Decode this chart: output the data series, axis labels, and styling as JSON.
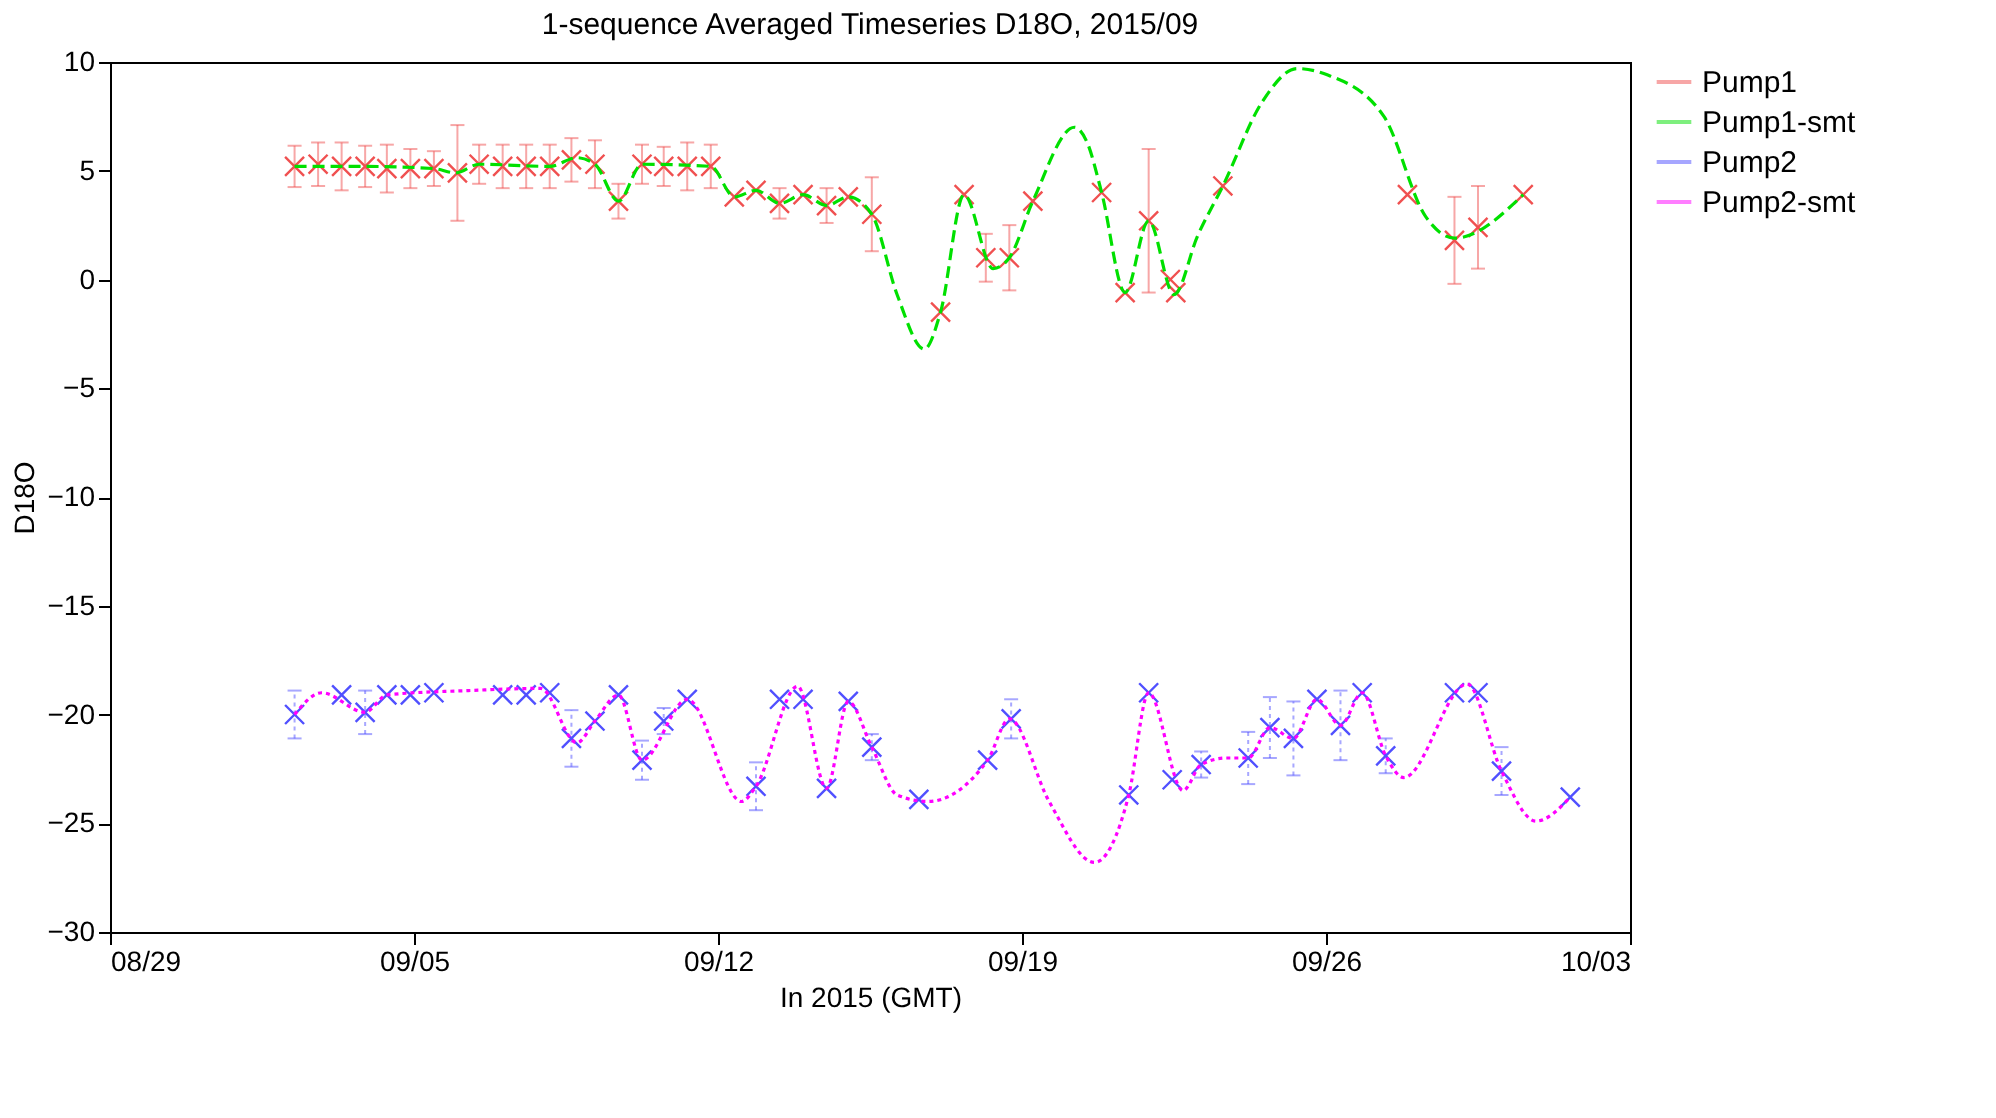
{
  "chart_data": {
    "type": "scatter",
    "title": "1-sequence Averaged Timeseries D18O, 2015/09",
    "xlabel": "In 2015 (GMT)",
    "ylabel": "D18O",
    "xlim": [
      "2015-08-29",
      "2015-10-03"
    ],
    "xticks": [
      {
        "value": "2015-08-29",
        "label": "08/29"
      },
      {
        "value": "2015-09-05",
        "label": "09/05"
      },
      {
        "value": "2015-09-12",
        "label": "09/12"
      },
      {
        "value": "2015-09-19",
        "label": "09/19"
      },
      {
        "value": "2015-09-26",
        "label": "09/26"
      },
      {
        "value": "2015-10-03",
        "label": "10/03"
      }
    ],
    "ylim": [
      -30,
      10
    ],
    "yticks": [
      -30,
      -25,
      -20,
      -15,
      -10,
      -5,
      0,
      5,
      10
    ],
    "grid": false,
    "legend": "top right",
    "marker": "cross",
    "series": [
      {
        "name": "Pump1",
        "color": "#f05050",
        "line_style": "solid",
        "x": [
          "2015-09-02T06:00",
          "2015-09-02T19:00",
          "2015-09-03T08:00",
          "2015-09-03T21:00",
          "2015-09-04T09:00",
          "2015-09-04T22:00",
          "2015-09-05T11:00",
          "2015-09-06T00:00",
          "2015-09-06T12:00",
          "2015-09-07T01:00",
          "2015-09-07T14:00",
          "2015-09-08T03:00",
          "2015-09-08T15:00",
          "2015-09-09T04:00",
          "2015-09-09T17:00",
          "2015-09-10T06:00",
          "2015-09-10T18:00",
          "2015-09-11T07:00",
          "2015-09-11T20:00",
          "2015-09-12T09:00",
          "2015-09-12T21:00",
          "2015-09-13T10:00",
          "2015-09-13T23:00",
          "2015-09-14T12:00",
          "2015-09-15T00:00",
          "2015-09-15T13:00",
          "2015-09-17T03:00",
          "2015-09-17T16:00",
          "2015-09-18T04:00",
          "2015-09-18T17:00",
          "2015-09-19T06:00",
          "2015-09-20T20:00",
          "2015-09-21T09:00",
          "2015-09-21T22:00",
          "2015-09-22T10:00",
          "2015-09-22T13:00",
          "2015-09-23T15:00",
          "2015-09-27T21:00",
          "2015-09-28T23:00",
          "2015-09-29T12:00",
          "2015-09-30T13:00"
        ],
        "values": [
          5.2,
          5.3,
          5.2,
          5.2,
          5.1,
          5.1,
          5.1,
          4.9,
          5.3,
          5.2,
          5.2,
          5.2,
          5.5,
          5.3,
          3.6,
          5.3,
          5.2,
          5.2,
          5.2,
          3.8,
          4.1,
          3.5,
          3.9,
          3.4,
          3.8,
          3.0,
          -1.5,
          3.9,
          1.0,
          1.0,
          3.6,
          4.0,
          -0.6,
          2.7,
          0.0,
          -0.6,
          4.3,
          3.9,
          1.8,
          2.4,
          3.9
        ],
        "errors": [
          0.95,
          1.0,
          1.1,
          0.95,
          1.1,
          0.9,
          0.8,
          2.2,
          0.9,
          1.0,
          1.0,
          1.0,
          1.0,
          1.1,
          0.8,
          0.9,
          0.9,
          1.1,
          1.0,
          null,
          null,
          0.7,
          null,
          0.8,
          null,
          1.7,
          null,
          null,
          1.1,
          1.5,
          null,
          null,
          null,
          3.3,
          null,
          null,
          null,
          null,
          2.0,
          1.9,
          null
        ]
      },
      {
        "name": "Pump1-smt",
        "type": "line",
        "marker": "none",
        "color": "#00e000",
        "line_style": "dashed",
        "x": [
          "2015-09-02T06:00",
          "2015-09-03T21:00",
          "2015-09-05T11:00",
          "2015-09-05T23:00",
          "2015-09-06T12:00",
          "2015-09-08T03:00",
          "2015-09-08T18:00",
          "2015-09-09T04:00",
          "2015-09-09T17:00",
          "2015-09-10T06:00",
          "2015-09-11T20:00",
          "2015-09-12T09:00",
          "2015-09-12T21:00",
          "2015-09-13T10:00",
          "2015-09-13T23:00",
          "2015-09-14T12:00",
          "2015-09-15T00:00",
          "2015-09-15T13:00",
          "2015-09-16T03:00",
          "2015-09-16T18:00",
          "2015-09-17T03:00",
          "2015-09-17T16:00",
          "2015-09-18T08:00",
          "2015-09-18T17:00",
          "2015-09-19T06:00",
          "2015-09-20T05:00",
          "2015-09-20T12:00",
          "2015-09-20T20:00",
          "2015-09-21T09:00",
          "2015-09-21T22:00",
          "2015-09-22T12:00",
          "2015-09-23T01:00",
          "2015-09-23T15:00",
          "2015-09-24T13:00",
          "2015-09-25T08:00",
          "2015-09-26T01:00",
          "2015-09-27T08:00",
          "2015-09-28T07:00",
          "2015-09-28T23:00",
          "2015-09-30T13:00"
        ],
        "values": [
          5.2,
          5.2,
          5.1,
          4.9,
          5.3,
          5.2,
          5.6,
          5.3,
          3.6,
          5.3,
          5.2,
          3.8,
          4.1,
          3.5,
          3.9,
          3.4,
          3.8,
          3.0,
          -0.7,
          -3.2,
          -1.5,
          3.9,
          0.5,
          1.0,
          3.6,
          7.0,
          6.3,
          4.0,
          -0.6,
          2.7,
          -0.7,
          2.0,
          4.3,
          8.2,
          9.7,
          9.4,
          7.5,
          2.9,
          1.9,
          3.9
        ]
      },
      {
        "name": "Pump2",
        "color": "#5050ff",
        "line_style": "dotted",
        "x": [
          "2015-09-02T06:00",
          "2015-09-03T08:00",
          "2015-09-03T21:00",
          "2015-09-04T09:00",
          "2015-09-04T22:00",
          "2015-09-05T11:00",
          "2015-09-07T01:00",
          "2015-09-07T14:00",
          "2015-09-08T03:00",
          "2015-09-08T15:00",
          "2015-09-09T04:00",
          "2015-09-09T17:00",
          "2015-09-10T06:00",
          "2015-09-10T18:00",
          "2015-09-11T07:00",
          "2015-09-12T21:00",
          "2015-09-13T10:00",
          "2015-09-13T23:00",
          "2015-09-14T12:00",
          "2015-09-15T00:00",
          "2015-09-15T13:00",
          "2015-09-16T15:00",
          "2015-09-18T05:00",
          "2015-09-18T18:00",
          "2015-09-21T11:00",
          "2015-09-21T22:00",
          "2015-09-22T11:00",
          "2015-09-23T03:00",
          "2015-09-24T05:00",
          "2015-09-24T17:00",
          "2015-09-25T06:00",
          "2015-09-25T19:00",
          "2015-09-26T08:00",
          "2015-09-26T20:00",
          "2015-09-27T09:00",
          "2015-09-28T23:00",
          "2015-09-29T12:00",
          "2015-09-30T01:00",
          "2015-10-01T15:00"
        ],
        "values": [
          -20.0,
          -19.1,
          -19.9,
          -19.1,
          -19.1,
          -19.0,
          -19.1,
          -19.1,
          -19.0,
          -21.1,
          -20.3,
          -19.1,
          -22.1,
          -20.3,
          -19.3,
          -23.3,
          -19.3,
          -19.3,
          -23.4,
          -19.4,
          -21.5,
          -23.9,
          -22.1,
          -20.2,
          -23.7,
          -19.0,
          -23.0,
          -22.3,
          -22.0,
          -20.6,
          -21.1,
          -19.3,
          -20.5,
          -19.0,
          -21.9,
          -19.0,
          -19.0,
          -22.6,
          -23.8
        ],
        "errors": [
          1.1,
          null,
          1.0,
          null,
          null,
          null,
          null,
          null,
          null,
          1.3,
          null,
          null,
          0.9,
          0.6,
          null,
          1.1,
          null,
          null,
          null,
          null,
          0.6,
          null,
          null,
          0.9,
          null,
          null,
          null,
          0.6,
          1.2,
          1.4,
          1.7,
          null,
          1.6,
          null,
          0.8,
          null,
          null,
          1.1,
          null
        ]
      },
      {
        "name": "Pump2-smt",
        "type": "line",
        "marker": "none",
        "color": "#ff00ff",
        "line_style": "dotted",
        "x": [
          "2015-09-02T06:00",
          "2015-09-02T21:00",
          "2015-09-03T21:00",
          "2015-09-04T09:00",
          "2015-09-06T06:00",
          "2015-09-07T22:00",
          "2015-09-08T18:00",
          "2015-09-09T04:00",
          "2015-09-09T17:00",
          "2015-09-10T06:00",
          "2015-09-11T07:00",
          "2015-09-12T13:00",
          "2015-09-12T21:00",
          "2015-09-13T20:00",
          "2015-09-14T12:00",
          "2015-09-15T00:00",
          "2015-09-15T13:00",
          "2015-09-16T03:00",
          "2015-09-16T20:00",
          "2015-09-18T05:00",
          "2015-09-18T17:00",
          "2015-09-19T15:00",
          "2015-09-20T16:00",
          "2015-09-21T11:00",
          "2015-09-21T22:00",
          "2015-09-22T17:00",
          "2015-09-23T03:00",
          "2015-09-23T17:00",
          "2015-09-24T05:00",
          "2015-09-24T17:00",
          "2015-09-25T06:00",
          "2015-09-25T19:00",
          "2015-09-26T08:00",
          "2015-09-26T20:00",
          "2015-09-27T09:00",
          "2015-09-27T19:00",
          "2015-09-29T06:00",
          "2015-09-30T01:00",
          "2015-09-30T20:00",
          "2015-10-01T15:00"
        ],
        "values": [
          -20.0,
          -19.0,
          -19.9,
          -19.1,
          -18.9,
          -18.8,
          -21.3,
          -20.3,
          -19.1,
          -22.1,
          -19.3,
          -24.0,
          -23.3,
          -18.7,
          -23.4,
          -19.4,
          -21.5,
          -23.7,
          -24.0,
          -22.1,
          -20.2,
          -24.0,
          -26.8,
          -23.7,
          -19.0,
          -23.5,
          -22.3,
          -22.0,
          -22.0,
          -20.6,
          -21.1,
          -19.3,
          -20.5,
          -19.0,
          -21.9,
          -22.9,
          -18.6,
          -22.6,
          -24.9,
          -23.8
        ]
      }
    ]
  }
}
